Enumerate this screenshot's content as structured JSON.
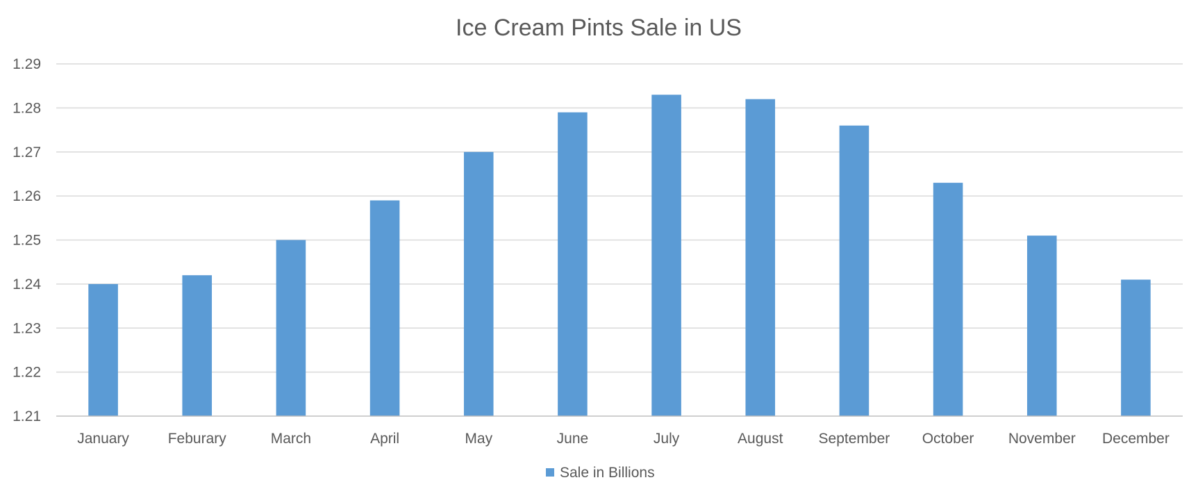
{
  "chart_data": {
    "type": "bar",
    "title": "Ice Cream Pints Sale in US",
    "xlabel": "",
    "ylabel": "",
    "categories": [
      "January",
      "Feburary",
      "March",
      "April",
      "May",
      "June",
      "July",
      "August",
      "September",
      "October",
      "November",
      "December"
    ],
    "series": [
      {
        "name": "Sale in Billions",
        "color": "#5b9bd5",
        "values": [
          1.24,
          1.242,
          1.25,
          1.259,
          1.27,
          1.279,
          1.283,
          1.282,
          1.276,
          1.263,
          1.251,
          1.241
        ]
      }
    ],
    "ylim": [
      1.21,
      1.29
    ],
    "yticks": [
      "1.21",
      "1.22",
      "1.23",
      "1.24",
      "1.25",
      "1.26",
      "1.27",
      "1.28",
      "1.29"
    ],
    "grid": true,
    "legend_position": "bottom"
  }
}
